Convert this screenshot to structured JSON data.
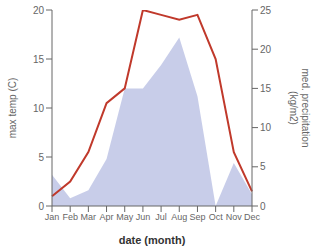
{
  "chart_data": {
    "type": "line",
    "xlabel": "date (month)",
    "ylabel": "max temp (C)",
    "y2label": "med. precipitation\n(kg/m2)",
    "categories": [
      "Jan",
      "Feb",
      "Mar",
      "Apr",
      "May",
      "Jun",
      "Jul",
      "Aug",
      "Sep",
      "Oct",
      "Nov",
      "Dec"
    ],
    "series": [
      {
        "type": "area",
        "color": "#b0b8e0",
        "axis": "y2",
        "values": [
          4.0,
          1.0,
          2.0,
          6.0,
          15.0,
          15.0,
          18.0,
          21.5,
          14.0,
          0.0,
          5.5,
          1.5
        ]
      },
      {
        "type": "line",
        "color": "#c0392b",
        "values": [
          1.0,
          2.5,
          5.5,
          10.5,
          12.0,
          20.0,
          19.5,
          19.0,
          19.5,
          15.0,
          5.5,
          1.5
        ]
      }
    ],
    "ylim": [
      0,
      20
    ],
    "yticks": [
      0,
      5,
      10,
      15,
      20
    ],
    "y2lim": [
      0,
      25
    ],
    "y2ticks": [
      0,
      5,
      10,
      15,
      20,
      25
    ]
  }
}
